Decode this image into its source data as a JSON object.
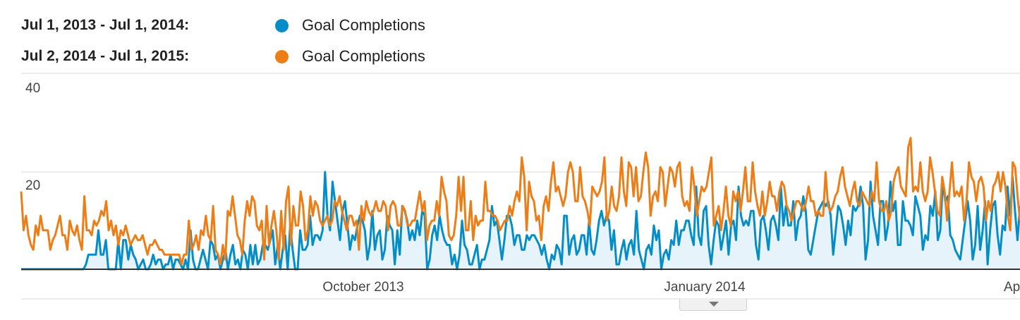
{
  "legend": {
    "range1": "Jul 1, 2013 - Jul 1, 2014:",
    "series1": "Goal Completions",
    "range2": "Jul 2, 2014 - Jul 1, 2015:",
    "series2": "Goal Completions"
  },
  "colors": {
    "series1": "#058dc7",
    "series1_fill": "#e6f3fa",
    "series2": "#ed7e17",
    "grid": "#e5e5e5",
    "baseline": "#333333"
  },
  "chart_data": {
    "type": "line",
    "title": "",
    "xlabel": "",
    "ylabel": "",
    "ylim": [
      0,
      40
    ],
    "y_ticks": [
      20,
      40
    ],
    "x_ticks": [
      "October 2013",
      "January 2014",
      "Ap"
    ],
    "x_range": [
      "2013-07-01",
      "2014-04-02"
    ],
    "grid": true,
    "legend_position": "top-left",
    "series": [
      {
        "name": "Goal Completions",
        "range": "Jul 1, 2013 - Jul 1, 2014",
        "area": true,
        "values": [
          0,
          0,
          0,
          0,
          0,
          0,
          0,
          0,
          0,
          0,
          0,
          0,
          0,
          0,
          0,
          0,
          0,
          0,
          0,
          0,
          0,
          0,
          0,
          0,
          0,
          0,
          1,
          3,
          3,
          3,
          3,
          8,
          3,
          3,
          6,
          0,
          0,
          0,
          0,
          6,
          0,
          6,
          6,
          2,
          5,
          3,
          2,
          0,
          1,
          2,
          0,
          0,
          1,
          3,
          1,
          2,
          2,
          0,
          1,
          1,
          3,
          0,
          2,
          2,
          1,
          0,
          2,
          0,
          8,
          2,
          0,
          0,
          2,
          4,
          2,
          0,
          6,
          5,
          2,
          3,
          0,
          2,
          4,
          0,
          3,
          5,
          1,
          2,
          0,
          4,
          3,
          0,
          5,
          1,
          5,
          1,
          2,
          5,
          5,
          4,
          6,
          8,
          1,
          5,
          0,
          4,
          7,
          0,
          9,
          4,
          0,
          0,
          8,
          4,
          4,
          5,
          11,
          5,
          7,
          7,
          6,
          8,
          20,
          11,
          8,
          18,
          14,
          10,
          6,
          12,
          14,
          9,
          4,
          7,
          6,
          9,
          11,
          10,
          8,
          2,
          5,
          12,
          4,
          7,
          8,
          2,
          4,
          11,
          9,
          8,
          1,
          8,
          3,
          13,
          12,
          10,
          6,
          8,
          6,
          10,
          7,
          12,
          11,
          0,
          2,
          7,
          9,
          6,
          11,
          8,
          6,
          5,
          5,
          1,
          3,
          0,
          3,
          10,
          5,
          4,
          1,
          1,
          3,
          5,
          0,
          2,
          2,
          4,
          6,
          13,
          9,
          10,
          6,
          2,
          6,
          11,
          11,
          9,
          5,
          7,
          7,
          4,
          4,
          7,
          6,
          7,
          7,
          6,
          5,
          3,
          5,
          2,
          0,
          3,
          2,
          5,
          4,
          1,
          11,
          11,
          3,
          6,
          7,
          3,
          4,
          7,
          7,
          3,
          10,
          4,
          3,
          6,
          10,
          12,
          9,
          11,
          10,
          4,
          8,
          1,
          1,
          4,
          6,
          2,
          5,
          6,
          3,
          12,
          4,
          2,
          0,
          4,
          5,
          3,
          9,
          6,
          8,
          0,
          3,
          4,
          2,
          6,
          5,
          10,
          5,
          8,
          8,
          10,
          10,
          7,
          5,
          17,
          7,
          5,
          12,
          13,
          5,
          1,
          6,
          10,
          9,
          4,
          7,
          10,
          3,
          9,
          10,
          6,
          17,
          11,
          9,
          10,
          9,
          12,
          12,
          5,
          2,
          10,
          11,
          8,
          4,
          10,
          11,
          9,
          6,
          17,
          9,
          13,
          9,
          9,
          14,
          6,
          10,
          11,
          15,
          12,
          4,
          3,
          6,
          9,
          12,
          13,
          14,
          13,
          14,
          11,
          3,
          8,
          13,
          12,
          9,
          5,
          10,
          7,
          13,
          12,
          13,
          17,
          13,
          2,
          6,
          18,
          11,
          8,
          5,
          14,
          14,
          6,
          9,
          18,
          12,
          14,
          5,
          5,
          14,
          10,
          10,
          9,
          7,
          15,
          13,
          11,
          4,
          7,
          6,
          13,
          11,
          16,
          6,
          8,
          18,
          14,
          15,
          7,
          6,
          4,
          3,
          2,
          6,
          10,
          14,
          10,
          2,
          5,
          13,
          4,
          8,
          14,
          1,
          8,
          13,
          14,
          7,
          3,
          9,
          8,
          17,
          11,
          19,
          12,
          6,
          13
        ]
      },
      {
        "name": "Goal Completions",
        "range": "Jul 2, 2014 - Jul 1, 2015",
        "area": false,
        "values": [
          16,
          8,
          11,
          7,
          5,
          4,
          9,
          7,
          11,
          8,
          8,
          8,
          4,
          6,
          7,
          9,
          11,
          7,
          7,
          4,
          10,
          8,
          7,
          9,
          6,
          4,
          15,
          8,
          8,
          7,
          10,
          9,
          10,
          12,
          11,
          14,
          8,
          10,
          7,
          9,
          5,
          8,
          7,
          9,
          7,
          5,
          6,
          7,
          6,
          6,
          7,
          5,
          3,
          5,
          5,
          6,
          5,
          4,
          4,
          3,
          3,
          3,
          3,
          3,
          3,
          3,
          1,
          3,
          3,
          10,
          4,
          5,
          7,
          4,
          8,
          7,
          11,
          7,
          6,
          13,
          4,
          3,
          1,
          5,
          2,
          12,
          11,
          15,
          11,
          7,
          6,
          3,
          10,
          14,
          11,
          15,
          14,
          9,
          8,
          10,
          2,
          13,
          5,
          9,
          12,
          8,
          2,
          12,
          4,
          14,
          17,
          5,
          13,
          9,
          9,
          16,
          13,
          6,
          8,
          15,
          11,
          14,
          13,
          10,
          9,
          10,
          11,
          9,
          10,
          14,
          13,
          15,
          12,
          10,
          8,
          11,
          11,
          9,
          10,
          4,
          13,
          10,
          14,
          12,
          11,
          12,
          14,
          12,
          12,
          14,
          13,
          8,
          13,
          14,
          13,
          9,
          9,
          13,
          12,
          9,
          9,
          10,
          10,
          13,
          16,
          12,
          14,
          6,
          9,
          10,
          10,
          14,
          11,
          19,
          16,
          14,
          7,
          6,
          7,
          11,
          19,
          12,
          19,
          8,
          8,
          14,
          6,
          11,
          9,
          10,
          10,
          18,
          12,
          12,
          11,
          11,
          10,
          8,
          9,
          10,
          10,
          13,
          11,
          14,
          16,
          14,
          23,
          19,
          8,
          18,
          15,
          14,
          10,
          11,
          6,
          13,
          15,
          12,
          18,
          22,
          16,
          17,
          15,
          13,
          15,
          20,
          22,
          20,
          14,
          14,
          21,
          15,
          14,
          12,
          9,
          17,
          16,
          15,
          16,
          18,
          23,
          10,
          12,
          17,
          13,
          12,
          15,
          23,
          16,
          13,
          22,
          21,
          15,
          21,
          14,
          15,
          20,
          24,
          21,
          11,
          15,
          16,
          14,
          21,
          20,
          13,
          17,
          21,
          20,
          17,
          21,
          22,
          15,
          13,
          14,
          12,
          21,
          17,
          11,
          14,
          17,
          16,
          17,
          20,
          23,
          9,
          11,
          13,
          8,
          12,
          17,
          11,
          9,
          16,
          14,
          16,
          12,
          16,
          21,
          14,
          14,
          22,
          16,
          13,
          11,
          16,
          11,
          14,
          18,
          15,
          15,
          12,
          16,
          18,
          17,
          13,
          12,
          10,
          12,
          14,
          14,
          13,
          12,
          14,
          17,
          14,
          14,
          11,
          12,
          11,
          11,
          20,
          13,
          12,
          13,
          15,
          16,
          19,
          21,
          17,
          15,
          13,
          16,
          18,
          14,
          13,
          16,
          15,
          14,
          13,
          16,
          14,
          22,
          14,
          12,
          12,
          14,
          10,
          12,
          18,
          20,
          21,
          17,
          16,
          15,
          25,
          27,
          16,
          17,
          16,
          22,
          16,
          14,
          16,
          23,
          20,
          16,
          12,
          11,
          19,
          16,
          10,
          16,
          22,
          15,
          16,
          15,
          17,
          10,
          14,
          22,
          19,
          18,
          14,
          18,
          19,
          17,
          10,
          14,
          12,
          17,
          18,
          20,
          16,
          20,
          17,
          11,
          8,
          22,
          21,
          15,
          10
        ]
      }
    ]
  }
}
